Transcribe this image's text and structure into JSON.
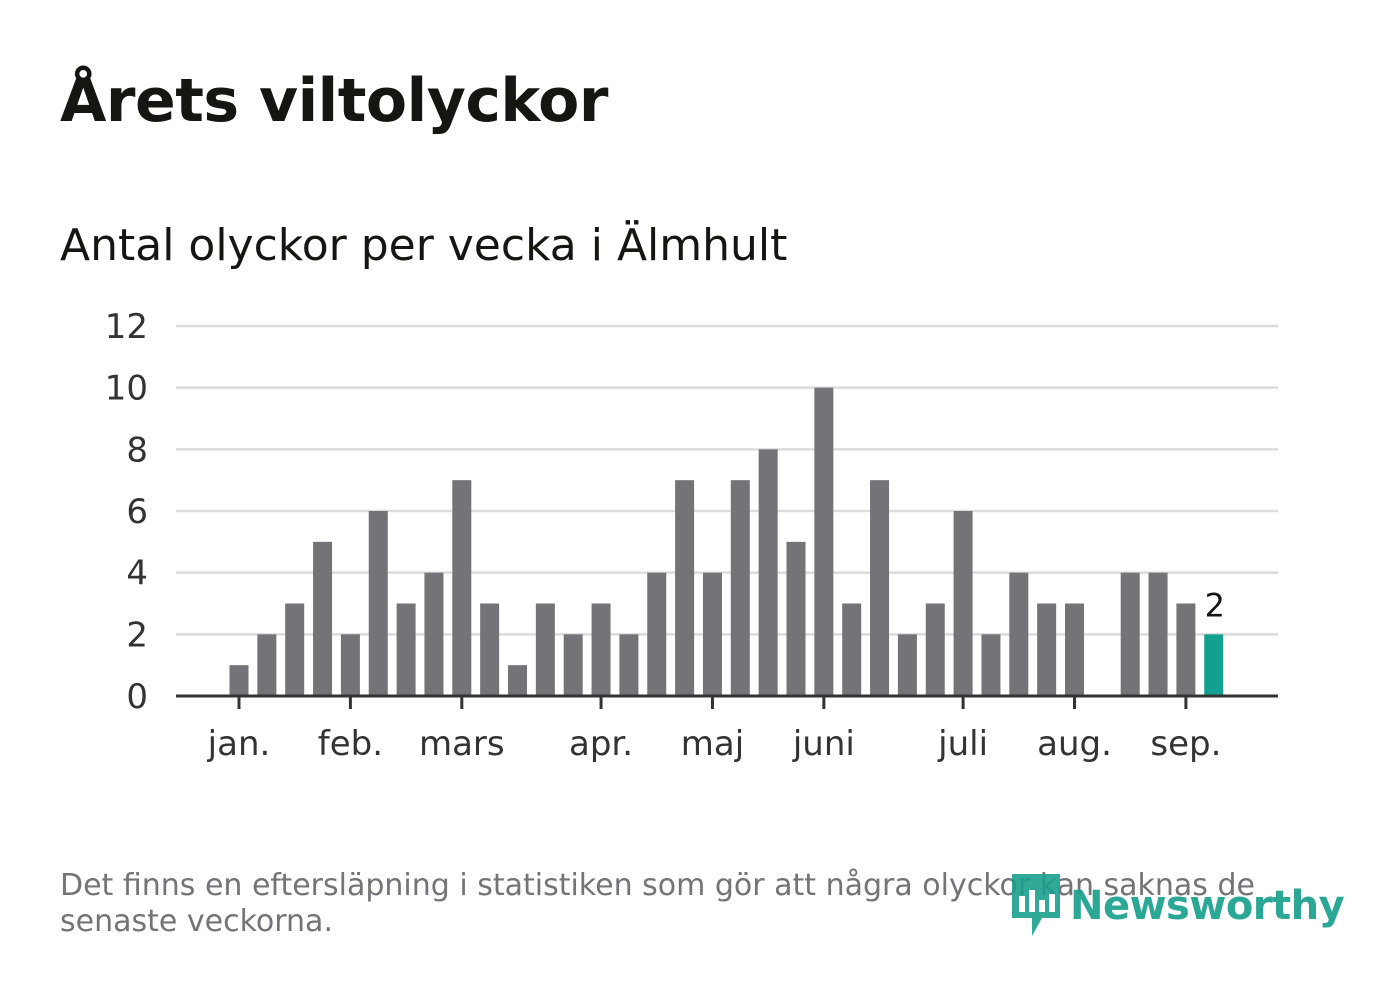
{
  "title": "Årets viltolyckor",
  "subtitle": "Antal olyckor per vecka i Älmhult",
  "footnote": "Det finns en eftersläpning i statistiken som gör att några olyckor kan saknas de senaste veckorna.",
  "logo": {
    "text": "Newsworthy",
    "icon": "newsworthy-logo-icon",
    "color": "#1aa08e"
  },
  "colors": {
    "bar": "#747478",
    "highlight": "#12a091",
    "grid": "#dcdcdc",
    "axis": "#333333",
    "text": "#333333"
  },
  "chart_data": {
    "type": "bar",
    "ylim": [
      0,
      12
    ],
    "yticks": [
      0,
      2,
      4,
      6,
      8,
      10,
      12
    ],
    "month_labels": [
      {
        "label": "jan.",
        "week": 1
      },
      {
        "label": "feb.",
        "week": 5
      },
      {
        "label": "mars",
        "week": 9
      },
      {
        "label": "apr.",
        "week": 14
      },
      {
        "label": "maj",
        "week": 18
      },
      {
        "label": "juni",
        "week": 22
      },
      {
        "label": "juli",
        "week": 27
      },
      {
        "label": "aug.",
        "week": 31
      },
      {
        "label": "sep.",
        "week": 35
      }
    ],
    "weeks": [
      1,
      2,
      3,
      4,
      5,
      6,
      7,
      8,
      9,
      10,
      11,
      12,
      13,
      14,
      15,
      16,
      17,
      18,
      19,
      20,
      21,
      22,
      23,
      24,
      25,
      26,
      27,
      28,
      29,
      30,
      31,
      32,
      33,
      34,
      35,
      36
    ],
    "values": [
      1,
      2,
      3,
      5,
      2,
      6,
      3,
      4,
      7,
      3,
      1,
      3,
      2,
      3,
      2,
      4,
      7,
      4,
      7,
      8,
      5,
      10,
      3,
      7,
      2,
      3,
      6,
      2,
      4,
      3,
      3,
      0,
      4,
      4,
      3,
      2
    ],
    "highlight_index": 35,
    "highlight_label": "2"
  }
}
